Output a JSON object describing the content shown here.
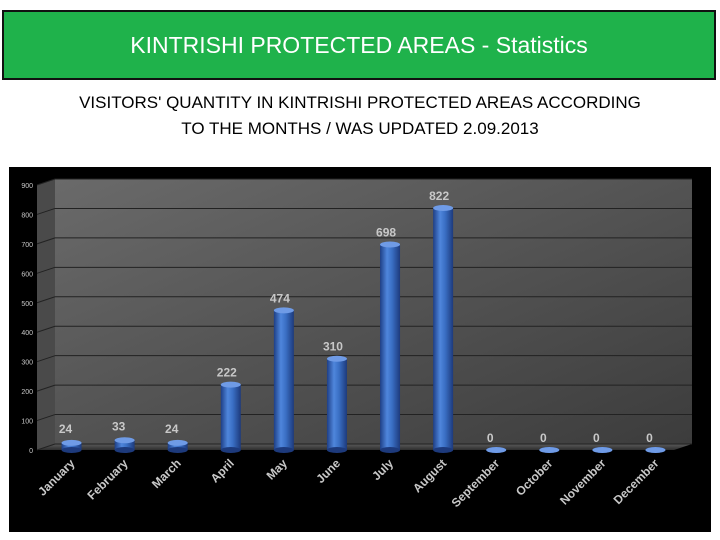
{
  "header": {
    "title": "KINTRISHI PROTECTED AREAS - Statistics"
  },
  "subtitle": {
    "line1": "VISITORS' QUANTITY IN KINTRISHI PROTECTED AREAS ACCORDING",
    "line2": "TO THE MONTHS / WAS UPDATED 2.09.2013"
  },
  "colors": {
    "header_bg": "#1fb24b",
    "chart_bg": "#000000",
    "bar": "#3a6fc4",
    "label": "#c8c8c8"
  },
  "chart_data": {
    "type": "bar",
    "title": "",
    "xlabel": "",
    "ylabel": "",
    "ylim": [
      0,
      900
    ],
    "yticks": [
      0,
      100,
      200,
      300,
      400,
      500,
      600,
      700,
      800,
      900
    ],
    "grid": true,
    "categories": [
      "January",
      "February",
      "March",
      "April",
      "May",
      "June",
      "July",
      "August",
      "September",
      "October",
      "November",
      "December"
    ],
    "values": [
      24,
      33,
      24,
      222,
      474,
      310,
      698,
      822,
      0,
      0,
      0,
      0
    ],
    "data_labels": [
      "24",
      "33",
      "24",
      "222",
      "474",
      "310",
      "698",
      "822",
      "0",
      "0",
      "0",
      "0"
    ]
  }
}
